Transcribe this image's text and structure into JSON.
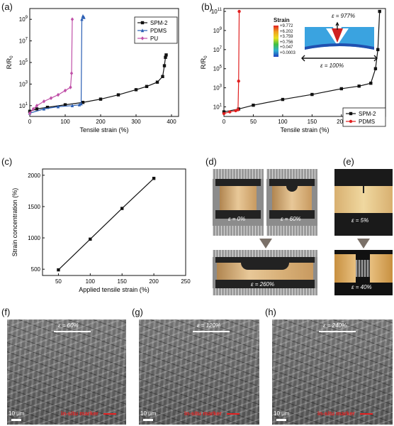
{
  "panels": {
    "a": {
      "label": "(a)"
    },
    "b": {
      "label": "(b)"
    },
    "c": {
      "label": "(c)"
    },
    "d": {
      "label": "(d)",
      "strain_labels": [
        "ε = 0%",
        "ε = 60%",
        "ε = 260%"
      ]
    },
    "e": {
      "label": "(e)",
      "strain_labels": [
        "ε = 5%",
        "ε = 40%"
      ]
    },
    "f": {
      "label": "(f)",
      "strain": "ε = 60%",
      "scale": "10 μm",
      "marker": "in-situ marker"
    },
    "g": {
      "label": "(g)",
      "strain": "ε = 120%",
      "scale": "10 μm",
      "marker": "in-situ marker"
    },
    "h": {
      "label": "(h)",
      "strain": "ε = 240%",
      "scale": "10 μm",
      "marker": "in-situ marker"
    }
  },
  "inset_b": {
    "title": "Strain",
    "ticks": [
      "+9.772",
      "+6.202",
      "+3.759",
      "+0.756",
      "+0.047",
      "+0.0003"
    ],
    "top_label": "ε = 977%",
    "bottom_label": "ε = 100%"
  },
  "colors": {
    "spm2": "#111111",
    "pdms_a": "#2b5fb4",
    "pu": "#c050a8",
    "pdms_b": "#e02020",
    "marker_red": "#e52020",
    "arrow_grey": "#7a7068"
  },
  "chart_data": [
    {
      "type": "line",
      "title": "",
      "xlabel": "Tensile strain (%)",
      "ylabel": "R/R0",
      "xlim": [
        0,
        420
      ],
      "ylim": [
        1,
        10000000000.0
      ],
      "yscale": "log",
      "xticks": [
        0,
        100,
        200,
        300,
        400
      ],
      "yticks": [
        "10^1",
        "10^3",
        "10^5",
        "10^7",
        "10^9"
      ],
      "legend": "top-right",
      "series": [
        {
          "name": "SPM-2",
          "marker": "square",
          "x": [
            0,
            20,
            50,
            100,
            150,
            200,
            250,
            300,
            330,
            360,
            375,
            380,
            383,
            385
          ],
          "y": [
            3,
            5,
            7,
            12,
            20,
            40,
            100,
            300,
            600,
            1500,
            5000,
            50000,
            300000,
            500000
          ]
        },
        {
          "name": "PDMS",
          "marker": "triangle",
          "x": [
            0,
            40,
            80,
            120,
            140,
            145,
            147,
            150,
            153
          ],
          "y": [
            2,
            5,
            8,
            10,
            12,
            15,
            1000000000.0,
            2000000000.0,
            1500000000.0
          ]
        },
        {
          "name": "PU",
          "marker": "diamond",
          "x": [
            0,
            10,
            20,
            40,
            60,
            80,
            100,
            115,
            118,
            120
          ],
          "y": [
            2,
            5,
            10,
            25,
            50,
            100,
            250,
            500,
            10000.0,
            1000000000.0
          ]
        }
      ]
    },
    {
      "type": "line",
      "title": "",
      "xlabel": "Tensile strain (%)",
      "ylabel": "R/R0",
      "xlim": [
        0,
        275
      ],
      "ylim": [
        1,
        200000000000.0
      ],
      "yscale": "log",
      "xticks": [
        0,
        50,
        100,
        150,
        200,
        250
      ],
      "yticks": [
        "10^1",
        "10^3",
        "10^5",
        "10^7",
        "10^9",
        "10^11"
      ],
      "legend": "bottom-right",
      "series": [
        {
          "name": "SPM-2",
          "marker": "square",
          "x": [
            0,
            25,
            50,
            100,
            150,
            200,
            230,
            250,
            258,
            262,
            265
          ],
          "y": [
            3,
            6,
            15,
            60,
            200,
            800,
            1500,
            3000,
            100000.0,
            10000000.0,
            100000000000.0
          ]
        },
        {
          "name": "PDMS",
          "marker": "circle",
          "x": [
            0,
            10,
            20,
            24,
            25,
            26
          ],
          "y": [
            2,
            3,
            4,
            5,
            5000,
            100000000000.0
          ]
        }
      ]
    },
    {
      "type": "line",
      "title": "",
      "xlabel": "Applied tensile strain (%)",
      "ylabel": "Strain concentration (%)",
      "xlim": [
        25,
        250
      ],
      "ylim": [
        400,
        2100
      ],
      "xticks": [
        50,
        100,
        150,
        200,
        250
      ],
      "yticks": [
        500,
        1000,
        1500,
        2000
      ],
      "series": [
        {
          "name": "",
          "marker": "square",
          "x": [
            50,
            100,
            150,
            200
          ],
          "y": [
            490,
            980,
            1470,
            1950
          ]
        }
      ]
    }
  ]
}
